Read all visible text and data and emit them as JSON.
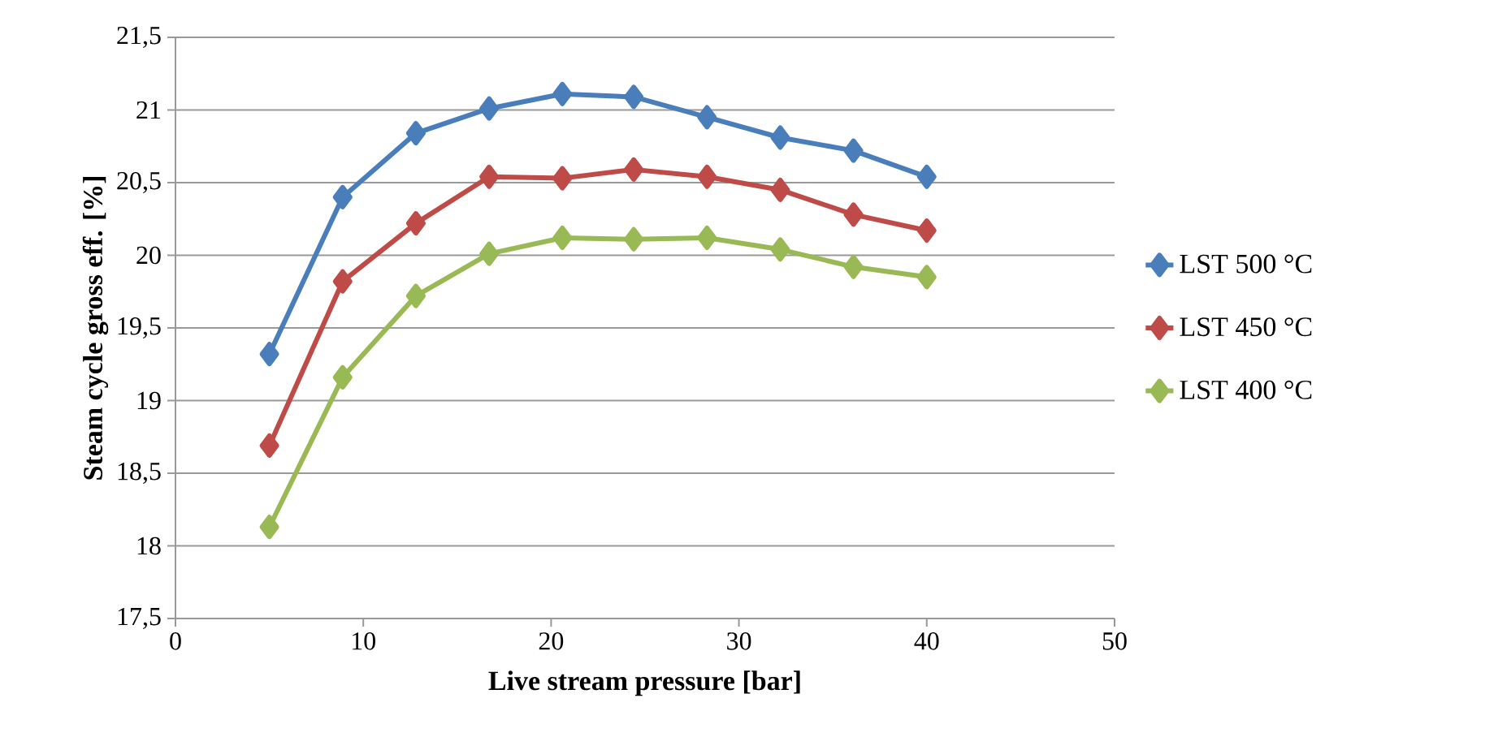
{
  "chart_data": {
    "type": "line",
    "xlabel": "Live stream pressure [bar]",
    "ylabel": "Steam cycle gross  eff. [%]",
    "x": [
      5,
      8.9,
      12.8,
      16.7,
      20.6,
      24.4,
      28.3,
      32.2,
      36.1,
      40
    ],
    "series": [
      {
        "name": "LST 500 °C",
        "color": "#4a7ebb",
        "values": [
          19.32,
          20.4,
          20.84,
          21.01,
          21.11,
          21.09,
          20.95,
          20.81,
          20.72,
          20.54
        ]
      },
      {
        "name": "LST 450 °C",
        "color": "#be4b48",
        "values": [
          18.69,
          19.82,
          20.22,
          20.54,
          20.53,
          20.59,
          20.54,
          20.45,
          20.28,
          20.17
        ]
      },
      {
        "name": "LST 400 °C",
        "color": "#98b954",
        "values": [
          18.13,
          19.16,
          19.72,
          20.01,
          20.12,
          20.11,
          20.12,
          20.04,
          19.92,
          19.85
        ]
      }
    ],
    "xlim": [
      0,
      50
    ],
    "ylim": [
      17.5,
      21.5
    ],
    "xticks": [
      0,
      10,
      20,
      30,
      40,
      50
    ],
    "yticks": [
      {
        "value": 17.5,
        "label": "17,5"
      },
      18,
      {
        "value": 18.5,
        "label": "18,5"
      },
      19,
      {
        "value": 19.5,
        "label": "19,5"
      },
      20,
      {
        "value": 20.5,
        "label": "20,5"
      },
      21,
      {
        "value": 21.5,
        "label": "21,5"
      }
    ],
    "grid": "y",
    "legend": "right",
    "marker": "diamond",
    "line_style": "solid"
  }
}
